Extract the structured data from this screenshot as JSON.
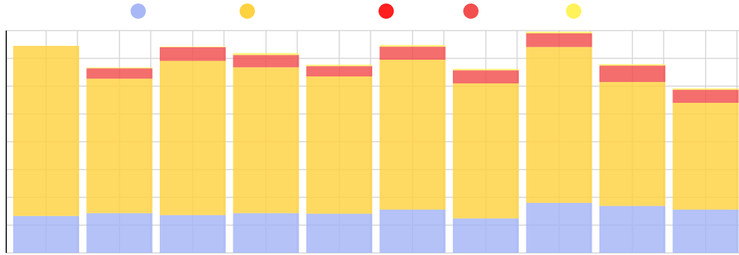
{
  "chart_data": {
    "type": "bar",
    "stacked": true,
    "title": "",
    "xlabel": "",
    "ylabel": "",
    "categories": [
      "",
      "",
      "",
      "",
      "",
      "",
      "",
      "",
      "",
      ""
    ],
    "ylim": [
      0,
      8
    ],
    "grid": true,
    "legend_position": "top",
    "series": [
      {
        "color": "#a3b4f7",
        "values": [
          1.33,
          1.43,
          1.36,
          1.43,
          1.41,
          1.56,
          1.24,
          1.8,
          1.69,
          1.56
        ]
      },
      {
        "color": "#ffd23f",
        "values": [
          6.12,
          4.84,
          5.55,
          5.25,
          4.94,
          5.39,
          4.86,
          5.61,
          4.46,
          3.84
        ]
      },
      {
        "color": "#ff1f1f",
        "values": [
          0,
          0,
          0,
          0,
          0,
          0,
          0,
          0,
          0,
          0
        ]
      },
      {
        "color": "#f24e4e",
        "values": [
          0,
          0.37,
          0.49,
          0.44,
          0.37,
          0.47,
          0.47,
          0.49,
          0.59,
          0.47
        ]
      },
      {
        "color": "#fff25a",
        "values": [
          0,
          0.03,
          0.02,
          0.07,
          0.05,
          0.06,
          0.05,
          0.06,
          0.05,
          0.05
        ]
      }
    ]
  }
}
